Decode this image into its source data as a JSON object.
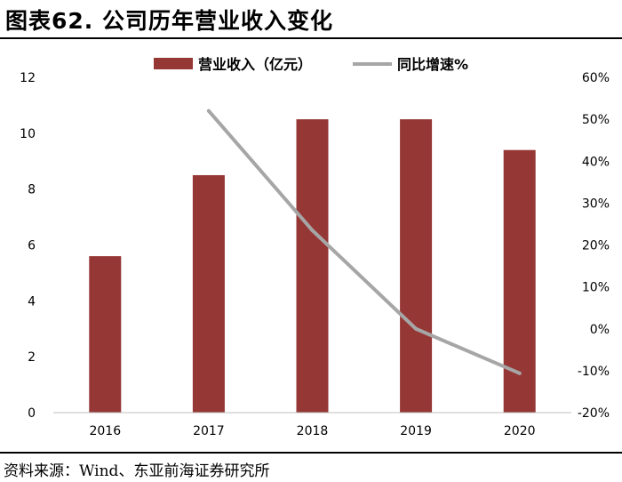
{
  "title": "图表62. 公司历年营业收入变化",
  "source": "资料来源：Wind、东亚前海证券研究所",
  "colors": {
    "bar": "#953735",
    "line": "#a6a6a6",
    "axis": "#bfbfbf"
  },
  "chart_data": {
    "type": "bar",
    "categories": [
      "2016",
      "2017",
      "2018",
      "2019",
      "2020"
    ],
    "series": [
      {
        "name": "营业收入（亿元）",
        "type": "bar",
        "axis": "left",
        "values": [
          5.6,
          8.5,
          10.5,
          10.5,
          9.4
        ]
      },
      {
        "name": "同比增速%",
        "type": "line",
        "axis": "right",
        "values": [
          null,
          52.0,
          23.5,
          0.0,
          -10.6
        ]
      }
    ],
    "ylim": [
      0,
      12
    ],
    "y_ticks": [
      "0",
      "2",
      "4",
      "6",
      "8",
      "10",
      "12"
    ],
    "y2lim": [
      -20,
      60
    ],
    "y2_ticks": [
      "-20%",
      "-10%",
      "0%",
      "10%",
      "20%",
      "30%",
      "40%",
      "50%",
      "60%"
    ],
    "grid": false,
    "legend_position": "top"
  }
}
